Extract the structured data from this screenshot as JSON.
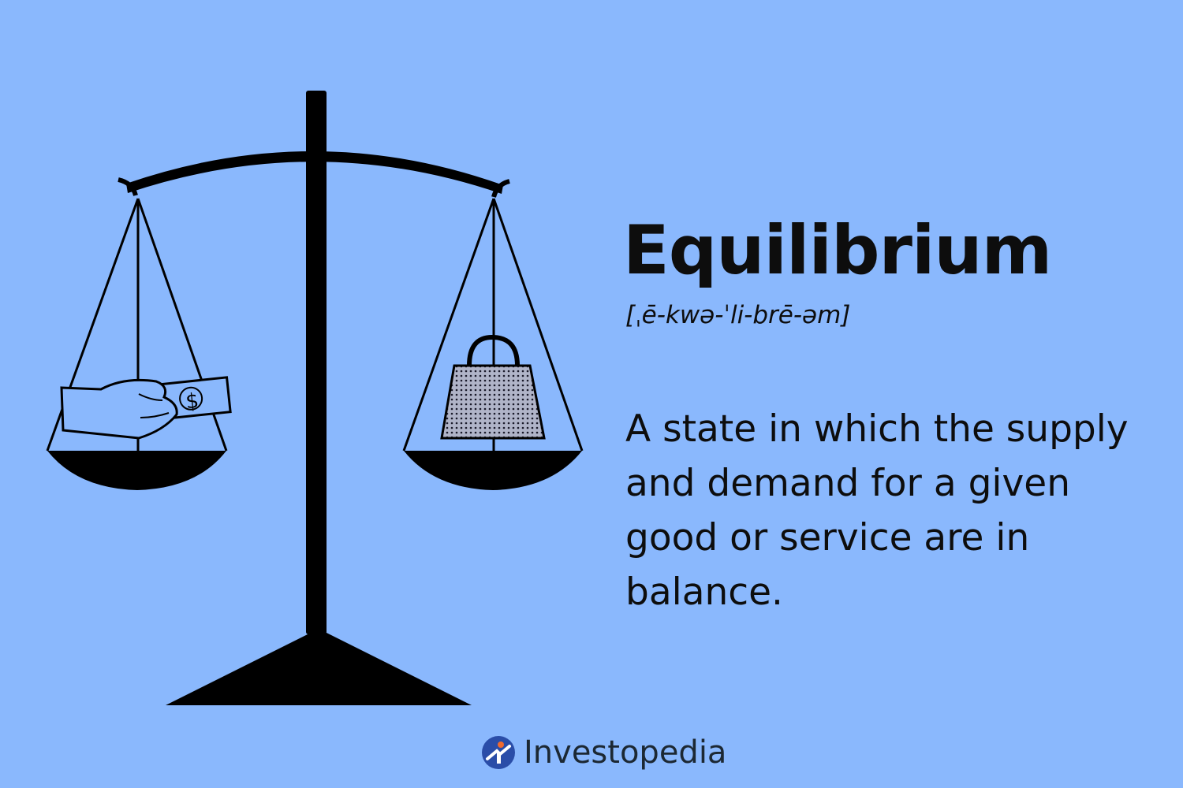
{
  "term": "Equilibrium",
  "pronunciation": "[ˌē-kwə-ˈli-brē-əm]",
  "definition": "A state in which the supply and demand for a given good or service are in balance.",
  "brand": {
    "name": "Investopedia",
    "logo_icon": "investopedia-logo-icon"
  },
  "illustration": {
    "scale_icon": "balance-scale",
    "left_pan_item": "hand-holding-dollar-bill",
    "right_pan_item": "weight",
    "bill_symbol": "$"
  },
  "colors": {
    "background": "#8ab8fd",
    "ink": "#0d0d0d",
    "logo_blue": "#2a4da8"
  }
}
